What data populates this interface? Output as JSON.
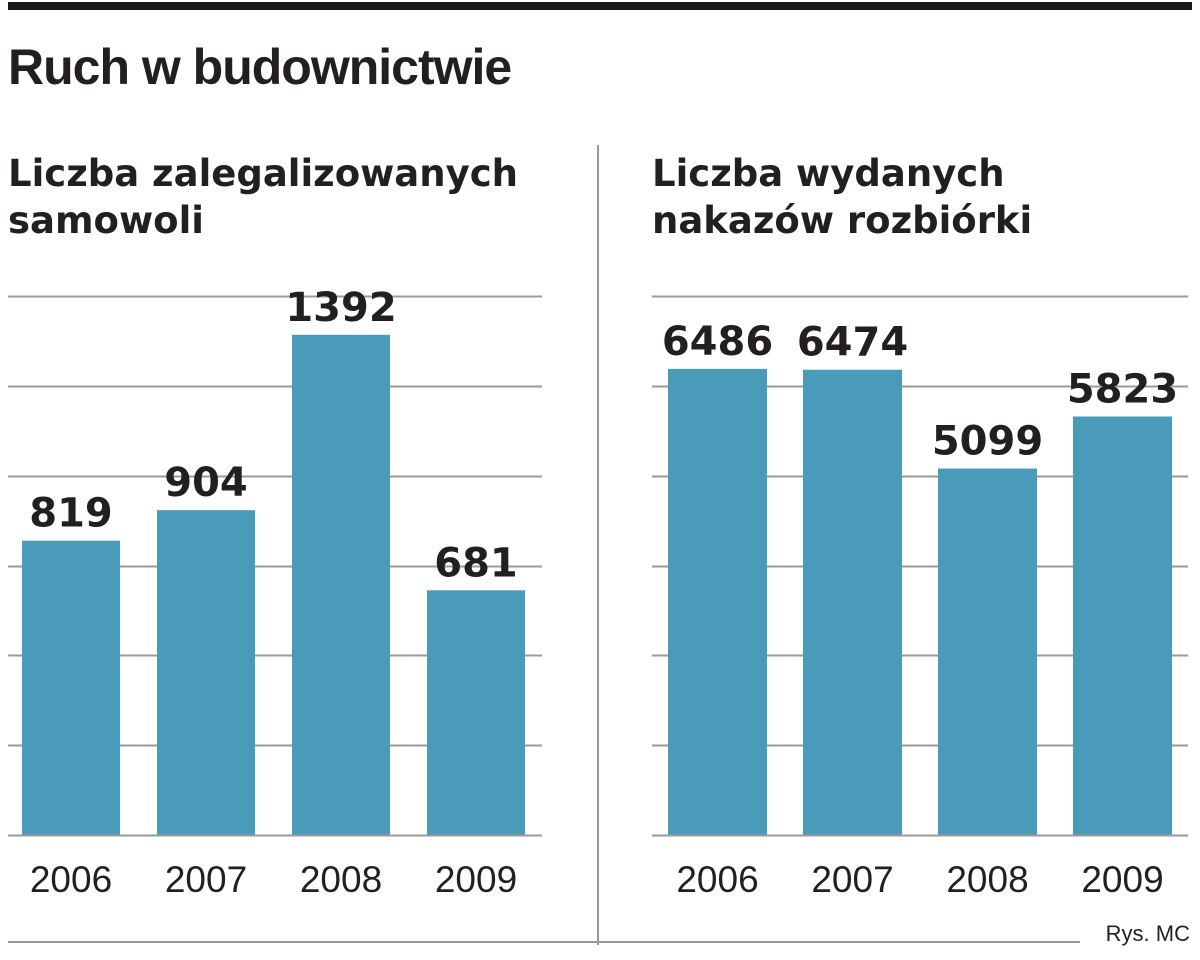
{
  "title": "Ruch w budownictwie",
  "credit": "Rys. MC",
  "colors": {
    "bar": "#4a9aba",
    "grid": "#9a9a9a",
    "text": "#231f20"
  },
  "chart_data": [
    {
      "type": "bar",
      "title_lines": [
        "Liczba zalegalizowanych",
        "samowoli"
      ],
      "categories": [
        "2006",
        "2007",
        "2008",
        "2009"
      ],
      "values": [
        819,
        904,
        1392,
        681
      ],
      "ylim": [
        0,
        1500
      ],
      "grid": true,
      "gridline_count": 6
    },
    {
      "type": "bar",
      "title_lines": [
        "Liczba wydanych",
        "nakazów rozbiórki"
      ],
      "categories": [
        "2006",
        "2007",
        "2008",
        "2009"
      ],
      "values": [
        6486,
        6474,
        5099,
        5823
      ],
      "ylim": [
        0,
        7500
      ],
      "grid": true,
      "gridline_count": 6
    }
  ]
}
